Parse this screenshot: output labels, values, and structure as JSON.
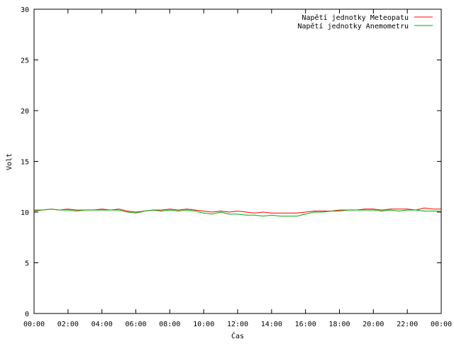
{
  "chart_data": {
    "type": "line",
    "title": "",
    "xlabel": "Čas",
    "ylabel": "Volt",
    "xlim": [
      "00:00",
      "24:00"
    ],
    "ylim": [
      0,
      30
    ],
    "grid": false,
    "legend_position": "top-right",
    "x_tick_labels": [
      "00:00",
      "02:00",
      "04:00",
      "06:00",
      "08:00",
      "10:00",
      "12:00",
      "14:00",
      "16:00",
      "18:00",
      "20:00",
      "22:00",
      "00:00"
    ],
    "y_tick_labels": [
      "0",
      "5",
      "10",
      "15",
      "20",
      "25",
      "30"
    ],
    "x": [
      "00:00",
      "00:30",
      "01:00",
      "01:30",
      "02:00",
      "02:30",
      "03:00",
      "03:30",
      "04:00",
      "04:30",
      "05:00",
      "05:30",
      "06:00",
      "06:30",
      "07:00",
      "07:30",
      "08:00",
      "08:30",
      "09:00",
      "09:30",
      "10:00",
      "10:30",
      "11:00",
      "11:30",
      "12:00",
      "12:30",
      "13:00",
      "13:30",
      "14:00",
      "14:30",
      "15:00",
      "15:30",
      "16:00",
      "16:30",
      "17:00",
      "17:30",
      "18:00",
      "18:30",
      "19:00",
      "19:30",
      "20:00",
      "20:30",
      "21:00",
      "21:30",
      "22:00",
      "22:30",
      "23:00",
      "23:30",
      "24:00"
    ],
    "series": [
      {
        "name": "Napětí jednotky Meteopatu",
        "color": "#ff0000",
        "values": [
          10.2,
          10.2,
          10.3,
          10.2,
          10.3,
          10.2,
          10.2,
          10.2,
          10.3,
          10.2,
          10.3,
          10.1,
          10.0,
          10.1,
          10.2,
          10.2,
          10.3,
          10.2,
          10.3,
          10.2,
          10.1,
          10.0,
          10.1,
          10.0,
          10.1,
          10.0,
          9.9,
          10.0,
          9.9,
          9.9,
          9.9,
          9.9,
          10.0,
          10.1,
          10.1,
          10.1,
          10.2,
          10.2,
          10.2,
          10.3,
          10.3,
          10.2,
          10.3,
          10.3,
          10.3,
          10.2,
          10.4,
          10.3,
          10.3
        ]
      },
      {
        "name": "Napětí jednotky Anemometru",
        "color": "#00aa00",
        "values": [
          10.1,
          10.2,
          10.3,
          10.2,
          10.2,
          10.1,
          10.2,
          10.2,
          10.2,
          10.2,
          10.2,
          10.0,
          9.9,
          10.1,
          10.2,
          10.1,
          10.2,
          10.1,
          10.2,
          10.1,
          9.9,
          9.8,
          10.0,
          9.8,
          9.8,
          9.7,
          9.7,
          9.6,
          9.7,
          9.6,
          9.6,
          9.6,
          9.8,
          10.0,
          10.0,
          10.1,
          10.1,
          10.2,
          10.2,
          10.2,
          10.2,
          10.1,
          10.2,
          10.1,
          10.2,
          10.2,
          10.1,
          10.1,
          10.1
        ]
      }
    ]
  }
}
